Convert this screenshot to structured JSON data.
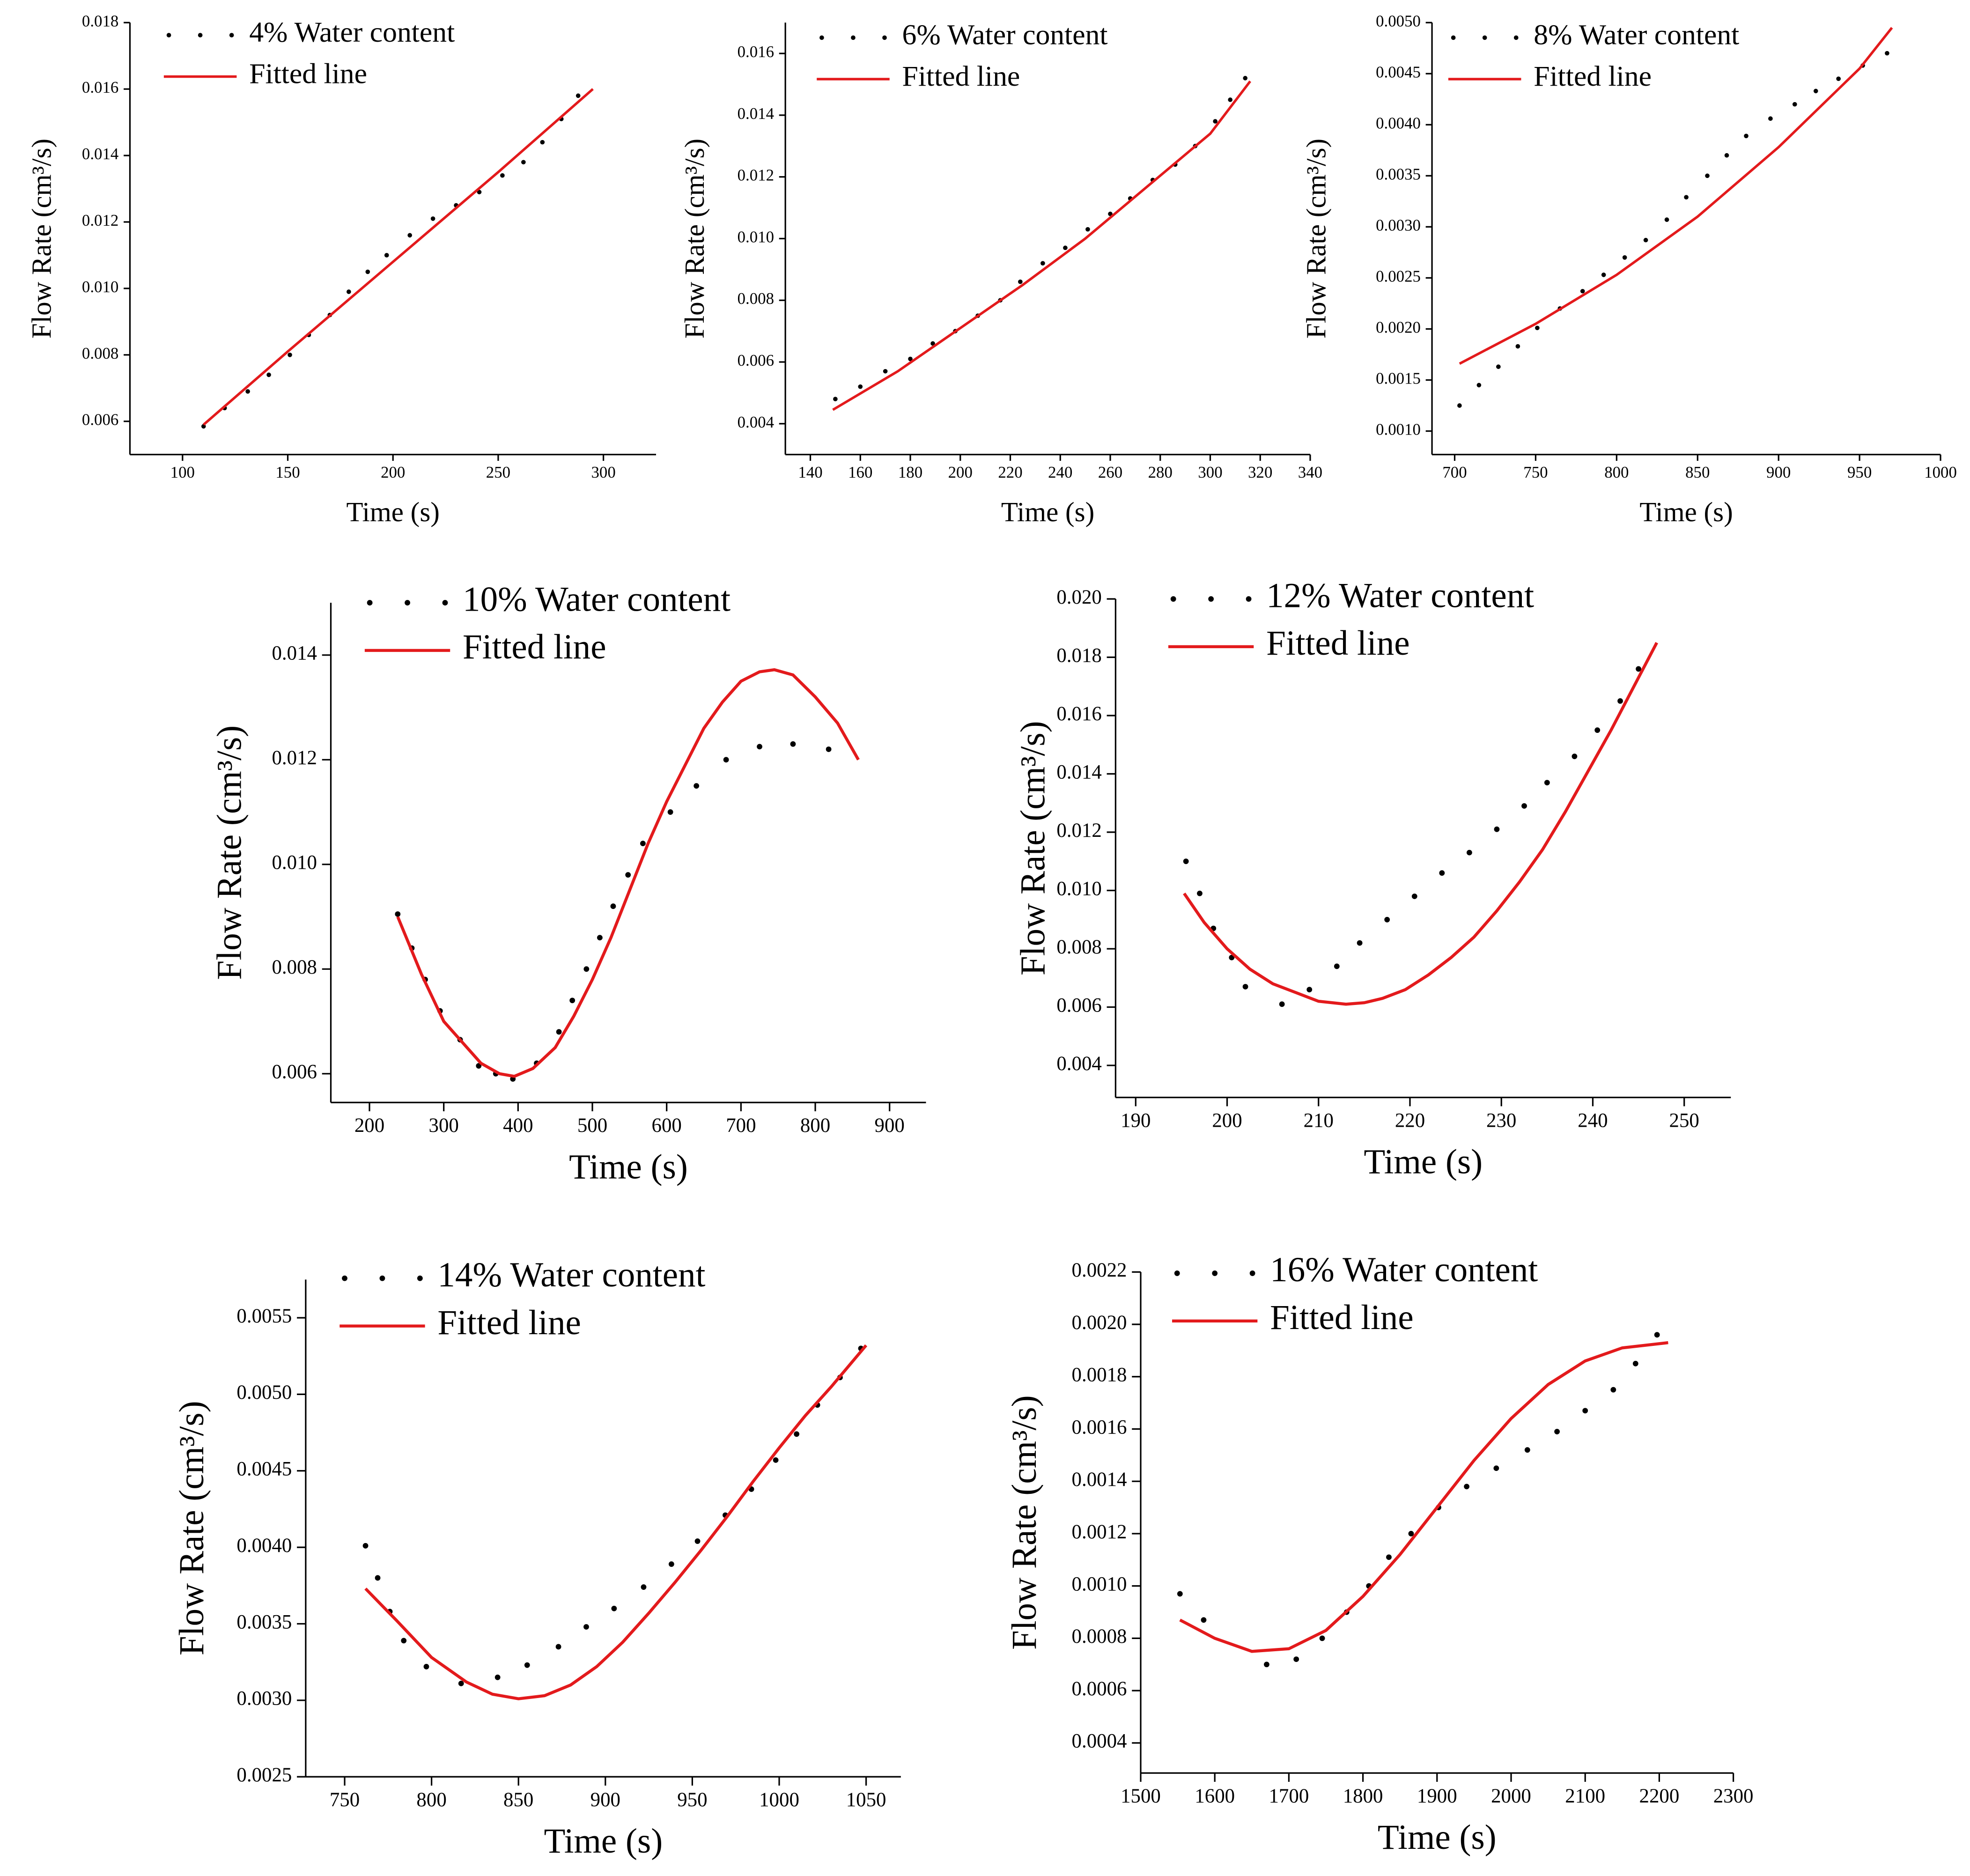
{
  "chart_data": [
    {
      "type": "scatter",
      "xlabel": "Time (s)",
      "ylabel": "Flow Rate (cm³/s)",
      "xlim": [
        75,
        325
      ],
      "xticks": [
        100,
        150,
        200,
        250,
        300
      ],
      "ylim": [
        0.005,
        0.018
      ],
      "yticks": [
        {
          "value": 0.006,
          "label": "0.006"
        },
        {
          "value": 0.008,
          "label": "0.008"
        },
        {
          "value": 0.01,
          "label": "0.010"
        },
        {
          "value": 0.012,
          "label": "0.012"
        },
        {
          "value": 0.014,
          "label": "0.014"
        },
        {
          "value": 0.016,
          "label": "0.016"
        },
        {
          "value": 0.018,
          "label": "0.018"
        }
      ],
      "series": [
        {
          "name": "4% Water content",
          "color": "#000000",
          "style": "dots",
          "x": [
            110,
            120,
            131,
            141,
            151,
            160,
            170,
            179,
            188,
            197,
            208,
            219,
            230,
            241,
            252,
            262,
            271,
            280,
            288
          ],
          "values": [
            0.00585,
            0.0064,
            0.0069,
            0.0074,
            0.008,
            0.0086,
            0.0092,
            0.0099,
            0.0105,
            0.011,
            0.0116,
            0.0121,
            0.0125,
            0.0129,
            0.0134,
            0.0138,
            0.0144,
            0.0151,
            0.0158
          ]
        },
        {
          "name": "Fitted line",
          "color": "#e31a1c",
          "style": "line",
          "x": [
            110,
            150,
            200,
            250,
            295
          ],
          "values": [
            0.0059,
            0.0081,
            0.0108,
            0.0135,
            0.016
          ]
        }
      ]
    },
    {
      "type": "scatter",
      "xlabel": "Time (s)",
      "ylabel": "Flow Rate (cm³/s)",
      "xlim": [
        130,
        340
      ],
      "xticks": [
        140,
        160,
        180,
        200,
        220,
        240,
        260,
        280,
        300,
        320,
        340
      ],
      "ylim": [
        0.003,
        0.017
      ],
      "yticks": [
        {
          "value": 0.004,
          "label": "0.004"
        },
        {
          "value": 0.006,
          "label": "0.006"
        },
        {
          "value": 0.008,
          "label": "0.008"
        },
        {
          "value": 0.01,
          "label": "0.010"
        },
        {
          "value": 0.012,
          "label": "0.012"
        },
        {
          "value": 0.014,
          "label": "0.014"
        },
        {
          "value": 0.016,
          "label": "0.016"
        }
      ],
      "series": [
        {
          "name": "6% Water content",
          "color": "#000000",
          "style": "dots",
          "x": [
            150,
            160,
            170,
            180,
            189,
            198,
            207,
            216,
            224,
            233,
            242,
            251,
            260,
            268,
            277,
            286,
            294,
            302,
            308,
            314
          ],
          "values": [
            0.0048,
            0.0052,
            0.0057,
            0.0061,
            0.0066,
            0.007,
            0.0075,
            0.008,
            0.0086,
            0.0092,
            0.0097,
            0.0103,
            0.0108,
            0.0113,
            0.0119,
            0.0124,
            0.013,
            0.0138,
            0.0145,
            0.0152
          ]
        },
        {
          "name": "Fitted line",
          "color": "#e31a1c",
          "style": "line",
          "x": [
            149,
            175,
            200,
            225,
            250,
            275,
            300,
            316
          ],
          "values": [
            0.00445,
            0.0057,
            0.0071,
            0.0085,
            0.01,
            0.0117,
            0.0134,
            0.0151
          ]
        }
      ]
    },
    {
      "type": "scatter",
      "xlabel": "Time (s)",
      "ylabel": "Flow Rate (cm³/s)",
      "xlim": [
        686,
        1000
      ],
      "xticks": [
        700,
        750,
        800,
        850,
        900,
        950,
        1000
      ],
      "ylim": [
        0.00077,
        0.005
      ],
      "yticks": [
        {
          "value": 0.001,
          "label": "0.0010"
        },
        {
          "value": 0.0015,
          "label": "0.0015"
        },
        {
          "value": 0.002,
          "label": "0.0020"
        },
        {
          "value": 0.0025,
          "label": "0.0025"
        },
        {
          "value": 0.003,
          "label": "0.0030"
        },
        {
          "value": 0.0035,
          "label": "0.0035"
        },
        {
          "value": 0.004,
          "label": "0.0040"
        },
        {
          "value": 0.0045,
          "label": "0.0045"
        },
        {
          "value": 0.005,
          "label": "0.0050"
        }
      ],
      "series": [
        {
          "name": "8% Water content",
          "color": "#000000",
          "style": "dots",
          "x": [
            703,
            715,
            727,
            739,
            751,
            765,
            779,
            792,
            805,
            818,
            831,
            843,
            856,
            868,
            880,
            895,
            910,
            923,
            937,
            952,
            967
          ],
          "values": [
            0.00125,
            0.00145,
            0.00163,
            0.00183,
            0.00201,
            0.0022,
            0.00237,
            0.00253,
            0.0027,
            0.00287,
            0.00307,
            0.00329,
            0.0035,
            0.0037,
            0.00389,
            0.00406,
            0.0042,
            0.00433,
            0.00445,
            0.00458,
            0.0047
          ]
        },
        {
          "name": "Fitted line",
          "color": "#e31a1c",
          "style": "line",
          "x": [
            703,
            750,
            800,
            850,
            900,
            950,
            970
          ],
          "values": [
            0.00166,
            0.00205,
            0.00253,
            0.0031,
            0.00378,
            0.00455,
            0.00495
          ]
        }
      ]
    },
    {
      "type": "scatter",
      "xlabel": "Time (s)",
      "ylabel": "Flow Rate (cm³/s)",
      "xlim": [
        148,
        949
      ],
      "xticks": [
        200,
        300,
        400,
        500,
        600,
        700,
        800,
        900
      ],
      "ylim": [
        0.00545,
        0.015
      ],
      "yticks": [
        {
          "value": 0.006,
          "label": "0.006"
        },
        {
          "value": 0.008,
          "label": "0.008"
        },
        {
          "value": 0.01,
          "label": "0.010"
        },
        {
          "value": 0.012,
          "label": "0.012"
        },
        {
          "value": 0.014,
          "label": "0.014"
        }
      ],
      "series": [
        {
          "name": "10% Water content",
          "color": "#000000",
          "style": "dots",
          "x": [
            238,
            257,
            275,
            295,
            322,
            347,
            370,
            393,
            425,
            455,
            473,
            492,
            510,
            528,
            548,
            568,
            605,
            640,
            680,
            725,
            770,
            818
          ],
          "values": [
            0.00905,
            0.0084,
            0.0078,
            0.0072,
            0.00665,
            0.00615,
            0.006,
            0.0059,
            0.0062,
            0.0068,
            0.0074,
            0.008,
            0.0086,
            0.0092,
            0.0098,
            0.0104,
            0.011,
            0.0115,
            0.012,
            0.01225,
            0.0123,
            0.0122
          ]
        },
        {
          "name": "Fitted line",
          "color": "#e31a1c",
          "style": "line",
          "x": [
            238,
            270,
            300,
            325,
            350,
            375,
            395,
            420,
            450,
            475,
            500,
            525,
            550,
            575,
            600,
            625,
            650,
            675,
            700,
            725,
            745,
            770,
            800,
            830,
            858
          ],
          "values": [
            0.009,
            0.0079,
            0.007,
            0.0066,
            0.0062,
            0.006,
            0.00595,
            0.0061,
            0.0065,
            0.0071,
            0.0078,
            0.0086,
            0.0095,
            0.0104,
            0.0112,
            0.0119,
            0.0126,
            0.0131,
            0.0135,
            0.01368,
            0.01372,
            0.01362,
            0.0132,
            0.0127,
            0.012
          ]
        }
      ]
    },
    {
      "type": "scatter",
      "xlabel": "Time (s)",
      "ylabel": "Flow Rate (cm³/s)",
      "xlim": [
        187.8,
        255.1
      ],
      "xticks": [
        190,
        200,
        210,
        220,
        230,
        240,
        250
      ],
      "ylim": [
        0.0029,
        0.02
      ],
      "yticks": [
        {
          "value": 0.004,
          "label": "0.004"
        },
        {
          "value": 0.006,
          "label": "0.006"
        },
        {
          "value": 0.008,
          "label": "0.008"
        },
        {
          "value": 0.01,
          "label": "0.010"
        },
        {
          "value": 0.012,
          "label": "0.012"
        },
        {
          "value": 0.014,
          "label": "0.014"
        },
        {
          "value": 0.016,
          "label": "0.016"
        },
        {
          "value": 0.018,
          "label": "0.018"
        },
        {
          "value": 0.02,
          "label": "0.020"
        }
      ],
      "series": [
        {
          "name": "12% Water content",
          "color": "#000000",
          "style": "dots",
          "x": [
            195.5,
            197,
            198.5,
            200.5,
            202,
            206,
            209,
            212,
            214.5,
            217.5,
            220.5,
            223.5,
            226.5,
            229.5,
            232.5,
            235,
            238,
            240.5,
            243,
            245
          ],
          "values": [
            0.011,
            0.0099,
            0.0087,
            0.0077,
            0.0067,
            0.0061,
            0.0066,
            0.0074,
            0.0082,
            0.009,
            0.0098,
            0.0106,
            0.0113,
            0.0121,
            0.0129,
            0.0137,
            0.0146,
            0.0155,
            0.0165,
            0.0176
          ]
        },
        {
          "name": "Fitted line",
          "color": "#e31a1c",
          "style": "line",
          "x": [
            195.3,
            197.5,
            200,
            202.5,
            205,
            207.5,
            210,
            213,
            215,
            217,
            219.5,
            222,
            224.5,
            227,
            229.5,
            232,
            234.5,
            237,
            239.5,
            242,
            244.5,
            247
          ],
          "values": [
            0.0099,
            0.0089,
            0.008,
            0.0073,
            0.0068,
            0.0065,
            0.0062,
            0.0061,
            0.00615,
            0.0063,
            0.0066,
            0.0071,
            0.0077,
            0.0084,
            0.0093,
            0.0103,
            0.0114,
            0.0127,
            0.0141,
            0.0155,
            0.017,
            0.0185
          ]
        }
      ]
    },
    {
      "type": "scatter",
      "xlabel": "Time (s)",
      "ylabel": "Flow Rate (cm³/s)",
      "xlim": [
        727.6,
        1070
      ],
      "xticks": [
        750,
        800,
        850,
        900,
        950,
        1000,
        1050
      ],
      "ylim": [
        0.0025,
        0.00575
      ],
      "yticks": [
        {
          "value": 0.0025,
          "label": "0.0025"
        },
        {
          "value": 0.003,
          "label": "0.0030"
        },
        {
          "value": 0.0035,
          "label": "0.0035"
        },
        {
          "value": 0.004,
          "label": "0.0040"
        },
        {
          "value": 0.0045,
          "label": "0.0045"
        },
        {
          "value": 0.005,
          "label": "0.0050"
        },
        {
          "value": 0.0055,
          "label": "0.0055"
        }
      ],
      "series": [
        {
          "name": "14% Water content",
          "color": "#000000",
          "style": "dots",
          "x": [
            762,
            769,
            776,
            784,
            797,
            817,
            838,
            855,
            873,
            889,
            905,
            922,
            938,
            953,
            969,
            984,
            998,
            1010,
            1022,
            1035,
            1047
          ],
          "values": [
            0.00401,
            0.0038,
            0.00358,
            0.00339,
            0.00322,
            0.00311,
            0.00315,
            0.00323,
            0.00335,
            0.00348,
            0.0036,
            0.00374,
            0.00389,
            0.00404,
            0.00421,
            0.00438,
            0.00457,
            0.00474,
            0.00493,
            0.00511,
            0.0053
          ]
        },
        {
          "name": "Fitted line",
          "color": "#e31a1c",
          "style": "line",
          "x": [
            762,
            780,
            800,
            820,
            835,
            850,
            865,
            880,
            895,
            910,
            925,
            940,
            955,
            970,
            985,
            1000,
            1015,
            1030,
            1050
          ],
          "values": [
            0.00373,
            0.00352,
            0.00328,
            0.00312,
            0.00304,
            0.00301,
            0.00303,
            0.0031,
            0.00322,
            0.00338,
            0.00357,
            0.00377,
            0.00398,
            0.0042,
            0.00443,
            0.00465,
            0.00486,
            0.00505,
            0.00532
          ]
        }
      ]
    },
    {
      "type": "scatter",
      "xlabel": "Time (s)",
      "ylabel": "Flow Rate (cm³/s)",
      "xlim": [
        1500,
        2300
      ],
      "xticks": [
        1500,
        1600,
        1700,
        1800,
        1900,
        2000,
        2100,
        2200,
        2300
      ],
      "ylim": [
        0.000285,
        0.0022
      ],
      "yticks": [
        {
          "value": 0.0004,
          "label": "0.0004"
        },
        {
          "value": 0.0006,
          "label": "0.0006"
        },
        {
          "value": 0.0008,
          "label": "0.0008"
        },
        {
          "value": 0.001,
          "label": "0.0010"
        },
        {
          "value": 0.0012,
          "label": "0.0012"
        },
        {
          "value": 0.0014,
          "label": "0.0014"
        },
        {
          "value": 0.0016,
          "label": "0.0016"
        },
        {
          "value": 0.0018,
          "label": "0.0018"
        },
        {
          "value": 0.002,
          "label": "0.0020"
        },
        {
          "value": 0.0022,
          "label": "0.0022"
        }
      ],
      "series": [
        {
          "name": "16% Water content",
          "color": "#000000",
          "style": "dots",
          "x": [
            1553,
            1585,
            1670,
            1710,
            1745,
            1778,
            1808,
            1835,
            1865,
            1902,
            1940,
            1980,
            2022,
            2062,
            2100,
            2138,
            2168,
            2197
          ],
          "values": [
            0.00097,
            0.00087,
            0.0007,
            0.00072,
            0.0008,
            0.0009,
            0.001,
            0.00111,
            0.0012,
            0.0013,
            0.00138,
            0.00145,
            0.00152,
            0.00159,
            0.00167,
            0.00175,
            0.00185,
            0.00196
          ]
        },
        {
          "name": "Fitted line",
          "color": "#e31a1c",
          "style": "line",
          "x": [
            1553,
            1600,
            1650,
            1700,
            1750,
            1800,
            1850,
            1900,
            1950,
            2000,
            2050,
            2100,
            2150,
            2212
          ],
          "values": [
            0.00087,
            0.0008,
            0.00075,
            0.00076,
            0.00083,
            0.00096,
            0.00112,
            0.0013,
            0.00148,
            0.00164,
            0.00177,
            0.00186,
            0.00191,
            0.00193
          ]
        }
      ]
    }
  ]
}
